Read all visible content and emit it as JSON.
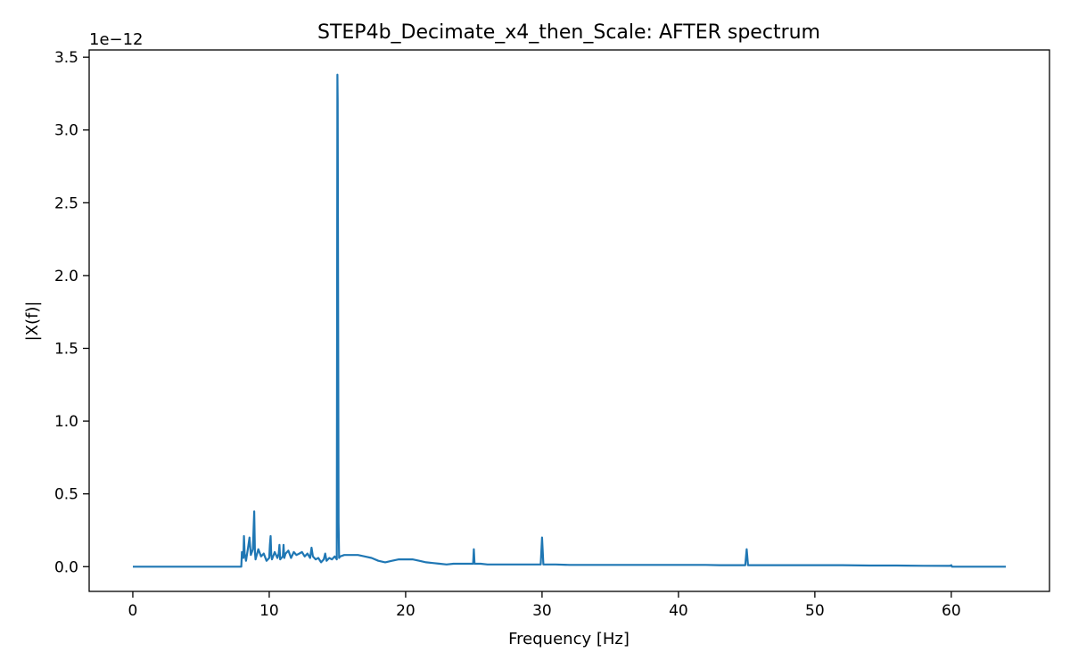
{
  "chart_data": {
    "type": "line",
    "title": "STEP4b_Decimate_x4_then_Scale: AFTER spectrum",
    "xlabel": "Frequency [Hz]",
    "ylabel": "|X(f)|",
    "y_offset_label": "1e−12",
    "xlim": [
      -3.2,
      67.2
    ],
    "ylim": [
      -0.17,
      3.55
    ],
    "x_ticks": [
      0,
      10,
      20,
      30,
      40,
      50,
      60
    ],
    "x_tick_labels": [
      "0",
      "10",
      "20",
      "30",
      "40",
      "50",
      "60"
    ],
    "y_ticks": [
      0.0,
      0.5,
      1.0,
      1.5,
      2.0,
      2.5,
      3.0,
      3.5
    ],
    "y_tick_labels": [
      "0.0",
      "0.5",
      "1.0",
      "1.5",
      "2.0",
      "2.5",
      "3.0",
      "3.5"
    ],
    "grid": false,
    "line_color": "#1f77b4",
    "series": [
      {
        "name": "AFTER spectrum",
        "x": [
          0,
          7.95,
          8.0,
          8.1,
          8.15,
          8.2,
          8.3,
          8.45,
          8.55,
          8.65,
          8.8,
          8.9,
          8.95,
          9.0,
          9.2,
          9.4,
          9.6,
          9.8,
          10.0,
          10.05,
          10.1,
          10.15,
          10.2,
          10.4,
          10.6,
          10.7,
          10.75,
          10.8,
          11.0,
          11.05,
          11.1,
          11.2,
          11.4,
          11.6,
          11.8,
          12.0,
          12.2,
          12.4,
          12.6,
          12.8,
          13.0,
          13.1,
          13.2,
          13.4,
          13.6,
          13.8,
          14.0,
          14.1,
          14.2,
          14.4,
          14.6,
          14.8,
          14.95,
          15.0,
          15.02,
          15.05,
          15.08,
          15.12,
          15.2,
          15.5,
          16.0,
          16.5,
          17.0,
          17.5,
          18.0,
          18.5,
          19.0,
          19.5,
          20.0,
          20.5,
          21.0,
          21.5,
          22.0,
          22.5,
          23.0,
          23.5,
          24.0,
          24.5,
          24.95,
          25.0,
          25.05,
          25.5,
          26.0,
          27.0,
          28.0,
          29.0,
          29.9,
          30.0,
          30.1,
          31.0,
          32.0,
          33.0,
          34.0,
          35.0,
          36.0,
          37.0,
          38.0,
          39.0,
          40.0,
          41.0,
          42.0,
          43.0,
          44.0,
          44.9,
          45.0,
          45.1,
          46.0,
          48.0,
          50.0,
          52.0,
          54.0,
          56.0,
          58.0,
          59.9,
          60.0,
          60.05,
          60.1,
          62.0,
          64.0
        ],
        "values": [
          0.0,
          0.0,
          0.1,
          0.06,
          0.21,
          0.09,
          0.04,
          0.13,
          0.2,
          0.08,
          0.12,
          0.38,
          0.1,
          0.05,
          0.12,
          0.07,
          0.09,
          0.04,
          0.06,
          0.15,
          0.21,
          0.08,
          0.05,
          0.1,
          0.06,
          0.09,
          0.15,
          0.05,
          0.07,
          0.15,
          0.06,
          0.09,
          0.11,
          0.06,
          0.1,
          0.08,
          0.09,
          0.1,
          0.07,
          0.09,
          0.06,
          0.13,
          0.07,
          0.05,
          0.06,
          0.03,
          0.05,
          0.09,
          0.04,
          0.06,
          0.05,
          0.07,
          0.05,
          3.38,
          3.2,
          1.82,
          0.3,
          0.06,
          0.07,
          0.08,
          0.08,
          0.08,
          0.07,
          0.06,
          0.04,
          0.03,
          0.04,
          0.05,
          0.05,
          0.05,
          0.04,
          0.03,
          0.025,
          0.02,
          0.015,
          0.02,
          0.02,
          0.02,
          0.02,
          0.12,
          0.02,
          0.02,
          0.015,
          0.015,
          0.015,
          0.015,
          0.015,
          0.2,
          0.015,
          0.015,
          0.012,
          0.012,
          0.012,
          0.012,
          0.012,
          0.012,
          0.012,
          0.012,
          0.012,
          0.012,
          0.012,
          0.01,
          0.01,
          0.01,
          0.12,
          0.01,
          0.01,
          0.01,
          0.01,
          0.01,
          0.008,
          0.008,
          0.006,
          0.005,
          0.01,
          0.0,
          0.0,
          0.0,
          0.0
        ]
      }
    ]
  }
}
